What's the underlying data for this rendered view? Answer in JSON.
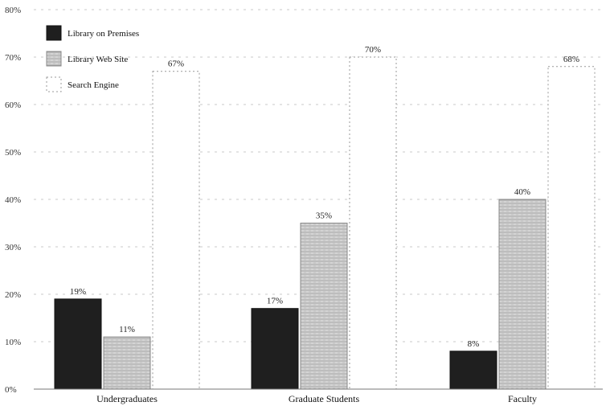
{
  "chart_data": {
    "type": "bar",
    "categories": [
      "Undergraduates",
      "Graduate Students",
      "Faculty"
    ],
    "series": [
      {
        "name": "Library on Premises",
        "values": [
          19,
          17,
          8
        ],
        "labels": [
          "19%",
          "17%",
          "8%"
        ]
      },
      {
        "name": "Library Web Site",
        "values": [
          11,
          35,
          40
        ],
        "labels": [
          "11%",
          "35%",
          "40%"
        ]
      },
      {
        "name": "Search Engine",
        "values": [
          67,
          70,
          68
        ],
        "labels": [
          "67%",
          "70%",
          "68%"
        ]
      }
    ],
    "y_ticks": [
      "0%",
      "10%",
      "20%",
      "30%",
      "40%",
      "50%",
      "60%",
      "70%",
      "80%"
    ],
    "ylim": [
      0,
      80
    ],
    "legend_position": "top-left",
    "colors": [
      "#1f1f1f",
      "#d4d4d4",
      "#ffffff"
    ]
  }
}
